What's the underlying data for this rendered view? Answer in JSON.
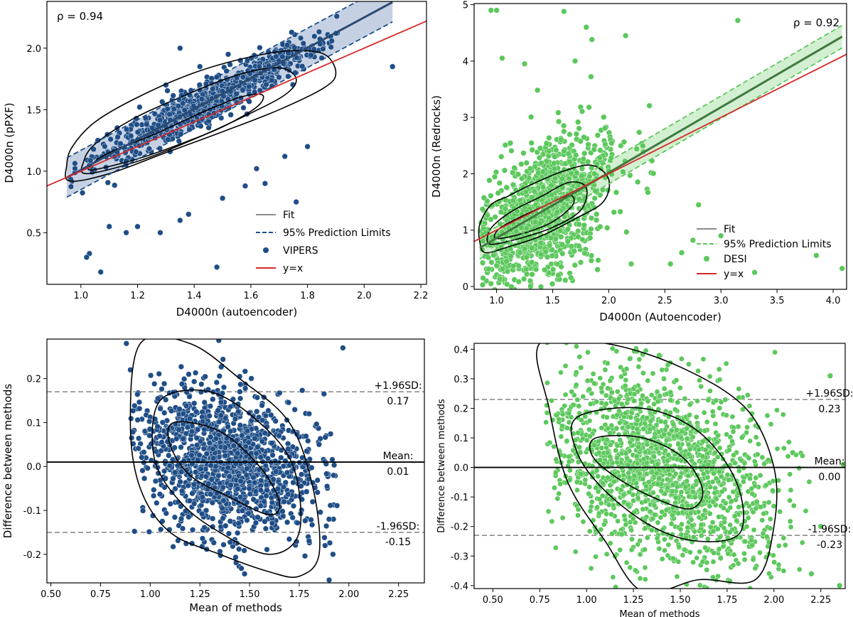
{
  "chart_data": [
    {
      "id": "vipers_scatter",
      "type": "scatter",
      "xlabel": "D4000n (autoencoder)",
      "ylabel": "D4000n (pPXF)",
      "xlim": [
        0.88,
        2.22
      ],
      "ylim": [
        0.08,
        2.38
      ],
      "xticks": [
        "1.0",
        "1.2",
        "1.4",
        "1.6",
        "1.8",
        "2.0",
        "2.2"
      ],
      "yticks": [
        "0.5",
        "1.0",
        "1.5",
        "2.0"
      ],
      "rho_label": "ρ = 0.94",
      "fit": {
        "slope": 1.24,
        "intercept": -0.23,
        "x_range": [
          0.95,
          2.1
        ],
        "pred_halfwidth": 0.16
      },
      "identity": {
        "x_range": [
          0.88,
          2.22
        ]
      },
      "legend": [
        {
          "label": "Fit",
          "kind": "line",
          "color": "#8c8c8c"
        },
        {
          "label": "95% Prediction Limits",
          "kind": "dashed",
          "color": "#1d4e89"
        },
        {
          "label": "VIPERS",
          "kind": "marker",
          "color": "#1f4e87"
        },
        {
          "label": "y=x",
          "kind": "line",
          "color": "#d62728"
        }
      ],
      "series_color": "#1f4e87",
      "band_color": "#b7c6dc",
      "fit_color": "#2a4a72",
      "outliers": [
        [
          1.48,
          0.22
        ],
        [
          1.03,
          0.33
        ],
        [
          1.07,
          0.18
        ],
        [
          1.02,
          0.3
        ],
        [
          1.65,
          0.9
        ],
        [
          2.1,
          1.85
        ],
        [
          1.35,
          2.0
        ],
        [
          1.52,
          1.95
        ],
        [
          1.76,
          0.75
        ],
        [
          1.1,
          0.55
        ],
        [
          1.16,
          0.5
        ],
        [
          1.2,
          0.55
        ],
        [
          1.28,
          0.5
        ],
        [
          1.35,
          0.6
        ],
        [
          1.38,
          0.65
        ],
        [
          1.5,
          0.78
        ],
        [
          1.58,
          0.88
        ],
        [
          1.62,
          1.02
        ],
        [
          1.72,
          1.12
        ],
        [
          1.8,
          1.2
        ],
        [
          1.42,
          1.85
        ],
        [
          1.3,
          1.7
        ],
        [
          1.85,
          1.92
        ]
      ],
      "core": {
        "x_mean": 1.44,
        "x_sd": 0.2,
        "resid_sd": 0.085,
        "count": 900,
        "x_min": 0.95,
        "x_max": 1.92
      },
      "contours": [
        [
          [
            0.96,
            0.92
          ],
          [
            1.1,
            0.98
          ],
          [
            1.3,
            1.15
          ],
          [
            1.5,
            1.32
          ],
          [
            1.7,
            1.5
          ],
          [
            1.86,
            1.68
          ],
          [
            1.9,
            1.8
          ],
          [
            1.86,
            1.95
          ],
          [
            1.75,
            1.98
          ],
          [
            1.6,
            1.93
          ],
          [
            1.4,
            1.8
          ],
          [
            1.2,
            1.6
          ],
          [
            1.05,
            1.4
          ],
          [
            0.97,
            1.2
          ],
          [
            0.95,
            1.05
          ]
        ],
        [
          [
            1.02,
            0.98
          ],
          [
            1.2,
            1.08
          ],
          [
            1.4,
            1.26
          ],
          [
            1.58,
            1.45
          ],
          [
            1.72,
            1.62
          ],
          [
            1.76,
            1.75
          ],
          [
            1.7,
            1.84
          ],
          [
            1.55,
            1.78
          ],
          [
            1.35,
            1.6
          ],
          [
            1.18,
            1.42
          ],
          [
            1.05,
            1.22
          ],
          [
            1.01,
            1.08
          ]
        ],
        [
          [
            1.04,
            1.01
          ],
          [
            1.2,
            1.1
          ],
          [
            1.35,
            1.22
          ],
          [
            1.5,
            1.36
          ],
          [
            1.62,
            1.52
          ],
          [
            1.64,
            1.62
          ],
          [
            1.56,
            1.6
          ],
          [
            1.42,
            1.47
          ],
          [
            1.26,
            1.3
          ],
          [
            1.1,
            1.15
          ],
          [
            1.04,
            1.06
          ]
        ]
      ]
    },
    {
      "id": "desi_scatter",
      "type": "scatter",
      "xlabel": "D4000n (Autoencoder)",
      "ylabel": "D4000n (Redrocks)",
      "xlim": [
        0.8,
        4.12
      ],
      "ylim": [
        -0.05,
        5.02
      ],
      "xticks": [
        "1.0",
        "1.5",
        "2.0",
        "2.5",
        "3.0",
        "3.5",
        "4.0"
      ],
      "yticks": [
        "0",
        "1",
        "2",
        "3",
        "4",
        "5"
      ],
      "rho_label": "ρ = 0.92",
      "fit": {
        "slope": 1.16,
        "intercept": -0.3,
        "x_range": [
          0.85,
          4.08
        ],
        "pred_halfwidth": 0.2
      },
      "identity": {
        "x_range": [
          0.8,
          4.12
        ]
      },
      "legend": [
        {
          "label": "Fit",
          "kind": "line",
          "color": "#8c8c8c"
        },
        {
          "label": "95% Prediction Limits",
          "kind": "dashed",
          "color": "#5cc75c"
        },
        {
          "label": "DESI",
          "kind": "marker",
          "color": "#5cc85c"
        },
        {
          "label": "y=x",
          "kind": "line",
          "color": "#d62728"
        }
      ],
      "series_color": "#5cc85c",
      "band_color": "#c8ebc5",
      "fit_color": "#3f7a3f",
      "outliers": [
        [
          0.95,
          4.9
        ],
        [
          1.0,
          4.9
        ],
        [
          1.6,
          4.88
        ],
        [
          1.8,
          4.6
        ],
        [
          1.85,
          4.38
        ],
        [
          2.15,
          4.45
        ],
        [
          3.15,
          4.72
        ],
        [
          1.7,
          4.0
        ],
        [
          1.05,
          4.05
        ],
        [
          1.25,
          3.95
        ],
        [
          2.8,
          1.45
        ],
        [
          3.0,
          0.9
        ],
        [
          3.3,
          0.25
        ],
        [
          3.85,
          0.55
        ],
        [
          4.08,
          0.32
        ],
        [
          2.55,
          0.4
        ],
        [
          2.65,
          0.6
        ],
        [
          2.75,
          0.82
        ],
        [
          1.3,
          0.1
        ],
        [
          1.55,
          0.2
        ],
        [
          1.9,
          0.3
        ],
        [
          2.2,
          0.4
        ],
        [
          0.88,
          0.15
        ],
        [
          0.95,
          0.05
        ]
      ],
      "core": {
        "x_mean": 1.4,
        "x_sd": 0.3,
        "resid_sd": 0.6,
        "count": 1100,
        "x_min": 0.85,
        "x_max": 2.4
      },
      "contours": [
        [
          [
            0.9,
            0.6
          ],
          [
            1.1,
            0.7
          ],
          [
            1.4,
            0.9
          ],
          [
            1.7,
            1.2
          ],
          [
            1.95,
            1.5
          ],
          [
            2.0,
            1.9
          ],
          [
            1.85,
            2.15
          ],
          [
            1.6,
            2.05
          ],
          [
            1.3,
            1.8
          ],
          [
            1.1,
            1.6
          ],
          [
            0.95,
            1.45
          ],
          [
            0.85,
            1.1
          ],
          [
            0.85,
            0.8
          ]
        ],
        [
          [
            0.95,
            0.75
          ],
          [
            1.2,
            0.85
          ],
          [
            1.5,
            1.05
          ],
          [
            1.75,
            1.35
          ],
          [
            1.8,
            1.75
          ],
          [
            1.65,
            1.85
          ],
          [
            1.4,
            1.6
          ],
          [
            1.15,
            1.35
          ],
          [
            0.98,
            1.1
          ],
          [
            0.92,
            0.9
          ]
        ],
        [
          [
            1.0,
            0.85
          ],
          [
            1.25,
            0.95
          ],
          [
            1.5,
            1.15
          ],
          [
            1.68,
            1.45
          ],
          [
            1.65,
            1.62
          ],
          [
            1.45,
            1.45
          ],
          [
            1.2,
            1.22
          ],
          [
            1.02,
            1.02
          ]
        ]
      ]
    },
    {
      "id": "vipers_bland_altman",
      "type": "scatter",
      "xlabel": "Mean of methods",
      "ylabel": "Difference between methods",
      "xlim": [
        0.48,
        2.38
      ],
      "ylim": [
        -0.265,
        0.29
      ],
      "xticks": [
        "0.50",
        "0.75",
        "1.00",
        "1.25",
        "1.50",
        "1.75",
        "2.00",
        "2.25"
      ],
      "yticks": [
        "-0.2",
        "-0.1",
        "0.0",
        "0.1",
        "0.2"
      ],
      "mean_line": 0.01,
      "upper_line": 0.17,
      "lower_line": -0.15,
      "annotations": {
        "upper": "+1.96SD:",
        "upper_val": "0.17",
        "mean": "Mean:",
        "mean_val": "0.01",
        "lower": "-1.96SD:",
        "lower_val": "-0.15"
      },
      "series_color": "#1f4e87",
      "outliers": [
        [
          1.97,
          0.27
        ],
        [
          0.88,
          0.28
        ],
        [
          1.9,
          -0.12
        ],
        [
          1.88,
          -0.18
        ],
        [
          1.92,
          -0.2
        ],
        [
          0.9,
          0.22
        ],
        [
          1.85,
          0.05
        ],
        [
          1.8,
          0.12
        ]
      ],
      "core": {
        "x_mean": 1.38,
        "x_sd": 0.22,
        "y_mean": 0.01,
        "y_sd": 0.085,
        "count": 1400,
        "x_min": 0.9,
        "x_max": 1.95,
        "tilt": -0.08
      },
      "contours": [
        [
          [
            0.95,
            0.28
          ],
          [
            1.2,
            0.28
          ],
          [
            1.45,
            0.2
          ],
          [
            1.7,
            0.1
          ],
          [
            1.82,
            -0.05
          ],
          [
            1.85,
            -0.2
          ],
          [
            1.75,
            -0.25
          ],
          [
            1.6,
            -0.24
          ],
          [
            1.35,
            -0.2
          ],
          [
            1.1,
            -0.15
          ],
          [
            0.95,
            -0.05
          ],
          [
            0.9,
            0.1
          ]
        ],
        [
          [
            1.05,
            0.15
          ],
          [
            1.3,
            0.17
          ],
          [
            1.55,
            0.1
          ],
          [
            1.72,
            0.0
          ],
          [
            1.75,
            -0.15
          ],
          [
            1.6,
            -0.2
          ],
          [
            1.35,
            -0.15
          ],
          [
            1.15,
            -0.08
          ],
          [
            1.02,
            0.02
          ]
        ],
        [
          [
            1.12,
            0.1
          ],
          [
            1.35,
            0.08
          ],
          [
            1.55,
            0.0
          ],
          [
            1.65,
            -0.08
          ],
          [
            1.6,
            -0.11
          ],
          [
            1.4,
            -0.07
          ],
          [
            1.2,
            -0.02
          ],
          [
            1.1,
            0.05
          ]
        ]
      ]
    },
    {
      "id": "desi_bland_altman",
      "type": "scatter",
      "xlabel": "Mean of methods",
      "ylabel": "Difference between methods",
      "xlim": [
        0.4,
        2.38
      ],
      "ylim": [
        -0.41,
        0.42
      ],
      "xticks": [
        "0.50",
        "0.75",
        "1.00",
        "1.25",
        "1.50",
        "1.75",
        "2.00",
        "2.25"
      ],
      "yticks": [
        "-0.4",
        "-0.3",
        "-0.2",
        "-0.1",
        "0.0",
        "0.1",
        "0.2",
        "0.3",
        "0.4"
      ],
      "mean_line": 0.0,
      "upper_line": 0.23,
      "lower_line": -0.23,
      "annotations": {
        "upper": "+1.96SD:",
        "upper_val": "0.23",
        "mean": "Mean:",
        "mean_val": "0.00",
        "lower": "-1.96SD:",
        "lower_val": "-0.23"
      },
      "series_color": "#5cc85c",
      "outliers": [
        [
          2.37,
          0.01
        ],
        [
          2.3,
          0.31
        ],
        [
          2.35,
          -0.4
        ],
        [
          2.2,
          -0.36
        ],
        [
          2.25,
          -0.2
        ],
        [
          2.1,
          0.05
        ]
      ],
      "core": {
        "x_mean": 1.4,
        "x_sd": 0.3,
        "y_mean": 0.0,
        "y_sd": 0.16,
        "count": 1700,
        "x_min": 0.78,
        "x_max": 2.2,
        "tilt": -0.22
      },
      "contours": [
        [
          [
            0.75,
            0.42
          ],
          [
            1.1,
            0.42
          ],
          [
            1.5,
            0.34
          ],
          [
            1.85,
            0.2
          ],
          [
            2.0,
            0.0
          ],
          [
            2.0,
            -0.2
          ],
          [
            1.9,
            -0.38
          ],
          [
            1.6,
            -0.38
          ],
          [
            1.3,
            -0.42
          ],
          [
            1.1,
            -0.25
          ],
          [
            0.9,
            -0.05
          ],
          [
            0.8,
            0.2
          ]
        ],
        [
          [
            0.95,
            0.17
          ],
          [
            1.3,
            0.2
          ],
          [
            1.6,
            0.12
          ],
          [
            1.8,
            -0.05
          ],
          [
            1.82,
            -0.22
          ],
          [
            1.6,
            -0.25
          ],
          [
            1.35,
            -0.2
          ],
          [
            1.1,
            -0.08
          ],
          [
            0.95,
            0.05
          ]
        ],
        [
          [
            1.05,
            0.1
          ],
          [
            1.3,
            0.1
          ],
          [
            1.52,
            0.03
          ],
          [
            1.62,
            -0.08
          ],
          [
            1.55,
            -0.14
          ],
          [
            1.35,
            -0.1
          ],
          [
            1.15,
            -0.03
          ],
          [
            1.03,
            0.04
          ]
        ]
      ]
    }
  ]
}
